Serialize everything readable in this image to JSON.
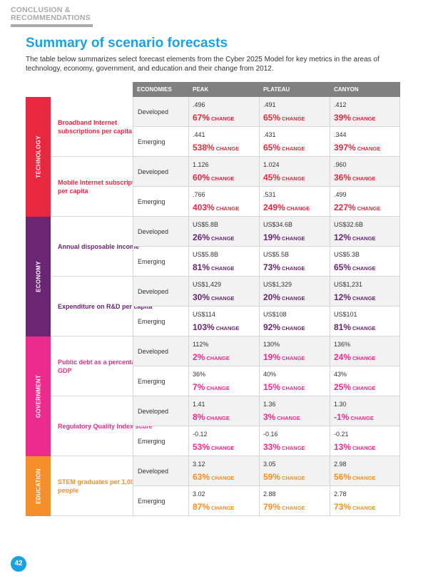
{
  "section_label": "CONCLUSION & RECOMMENDATIONS",
  "title": "Summary of scenario forecasts",
  "intro": "The table below summarizes select forecast elements from the Cyber 2025 Model for key metrics in the areas of technology, economy, government, and education and their change from 2012.",
  "headers": {
    "economies": "ECONOMIES",
    "peak": "PEAK",
    "plateau": "PLATEAU",
    "canyon": "CANYON"
  },
  "change_word": "CHANGE",
  "page_number": "42",
  "colors": {
    "technology": "#e8283f",
    "economy": "#6a2573",
    "government": "#ec2c8c",
    "education": "#f4902c",
    "accent": "#1ba1e2"
  },
  "categories": [
    {
      "label": "TECHNOLOGY",
      "color": "#e8283f",
      "metrics": [
        {
          "label": "Broadband Internet subscriptions per capita",
          "rows": [
            {
              "economy": "Developed",
              "peak": [
                ".496",
                "67%"
              ],
              "plateau": [
                ".491",
                "65%"
              ],
              "canyon": [
                ".412",
                "39%"
              ]
            },
            {
              "economy": "Emerging",
              "peak": [
                ".441",
                "538%"
              ],
              "plateau": [
                ".431",
                "65%"
              ],
              "canyon": [
                ".344",
                "397%"
              ]
            }
          ]
        },
        {
          "label": "Mobile Internet subscriptions per capita",
          "rows": [
            {
              "economy": "Developed",
              "peak": [
                "1.126",
                "60%"
              ],
              "plateau": [
                "1.024",
                "45%"
              ],
              "canyon": [
                ".960",
                "36%"
              ]
            },
            {
              "economy": "Emerging",
              "peak": [
                ".766",
                "403%"
              ],
              "plateau": [
                ".531",
                "249%"
              ],
              "canyon": [
                ".499",
                "227%"
              ]
            }
          ]
        }
      ]
    },
    {
      "label": "ECONOMY",
      "color": "#6a2573",
      "metrics": [
        {
          "label": "Annual disposable income",
          "rows": [
            {
              "economy": "Developed",
              "peak": [
                "US$5.8B",
                "26%"
              ],
              "plateau": [
                "US$34.6B",
                "19%"
              ],
              "canyon": [
                "US$32.6B",
                "12%"
              ]
            },
            {
              "economy": "Emerging",
              "peak": [
                "US$5.8B",
                "81%"
              ],
              "plateau": [
                "US$5.5B",
                "73%"
              ],
              "canyon": [
                "US$5.3B",
                "65%"
              ]
            }
          ]
        },
        {
          "label": "Expenditure on R&D per capita",
          "rows": [
            {
              "economy": "Developed",
              "peak": [
                "US$1,429",
                "30%"
              ],
              "plateau": [
                "US$1,329",
                "20%"
              ],
              "canyon": [
                "US$1,231",
                "12%"
              ]
            },
            {
              "economy": "Emerging",
              "peak": [
                "US$114",
                "103%"
              ],
              "plateau": [
                "US$108",
                "92%"
              ],
              "canyon": [
                "US$101",
                "81%"
              ]
            }
          ]
        }
      ]
    },
    {
      "label": "GOVERNMENT",
      "color": "#ec2c8c",
      "metrics": [
        {
          "label": "Public debt as a percentage of GDP",
          "rows": [
            {
              "economy": "Developed",
              "peak": [
                "112%",
                "2%"
              ],
              "plateau": [
                "130%",
                "19%"
              ],
              "canyon": [
                "136%",
                "24%"
              ]
            },
            {
              "economy": "Emerging",
              "peak": [
                "36%",
                "7%"
              ],
              "plateau": [
                "40%",
                "15%"
              ],
              "canyon": [
                "43%",
                "25%"
              ]
            }
          ]
        },
        {
          "label": "Regulatory Quality Index score",
          "rows": [
            {
              "economy": "Developed",
              "peak": [
                "1.41",
                "8%"
              ],
              "plateau": [
                "1.36",
                "3%"
              ],
              "canyon": [
                "1.30",
                "-1%"
              ]
            },
            {
              "economy": "Emerging",
              "peak": [
                "-0.12",
                "53%"
              ],
              "plateau": [
                "-0.16",
                "33%"
              ],
              "canyon": [
                "-0.21",
                "13%"
              ]
            }
          ]
        }
      ]
    },
    {
      "label": "EDUCATION",
      "color": "#f4902c",
      "metrics": [
        {
          "label": "STEM graduates per 1,000 people",
          "rows": [
            {
              "economy": "Developed",
              "peak": [
                "3.12",
                "63%"
              ],
              "plateau": [
                "3.05",
                "59%"
              ],
              "canyon": [
                "2.98",
                "56%"
              ]
            },
            {
              "economy": "Emerging",
              "peak": [
                "3.02",
                "87%"
              ],
              "plateau": [
                "2.88",
                "79%"
              ],
              "canyon": [
                "2.78",
                "73%"
              ]
            }
          ]
        }
      ]
    }
  ]
}
